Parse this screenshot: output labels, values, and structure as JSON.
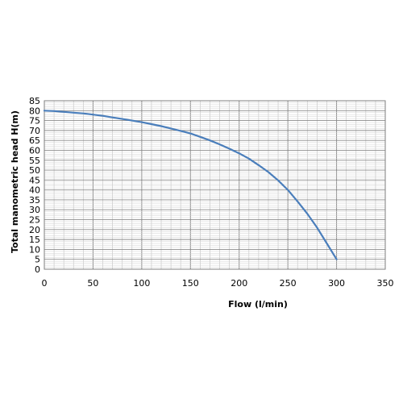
{
  "chart_data": {
    "type": "line",
    "xlabel": "Flow (l/min)",
    "ylabel": "Total manometric head H(m)",
    "xlim": [
      0,
      350
    ],
    "ylim": [
      0,
      85
    ],
    "x_ticks": [
      0,
      50,
      100,
      150,
      200,
      250,
      300,
      350
    ],
    "y_ticks": [
      0,
      5,
      10,
      15,
      20,
      25,
      30,
      35,
      40,
      45,
      50,
      55,
      60,
      65,
      70,
      75,
      80,
      85
    ],
    "grid": true,
    "line_color": "#4a7ebb",
    "series": [
      {
        "x": [
          0,
          10,
          20,
          30,
          40,
          50,
          60,
          70,
          80,
          90,
          100,
          110,
          120,
          130,
          140,
          150,
          160,
          170,
          180,
          190,
          200,
          210,
          220,
          230,
          240,
          250,
          260,
          270,
          280,
          290,
          300
        ],
        "values": [
          80,
          79.8,
          79.4,
          79,
          78.6,
          78,
          77.4,
          76.6,
          75.8,
          75,
          74.2,
          73.2,
          72.2,
          71,
          69.8,
          68.5,
          66.8,
          65,
          63,
          60.8,
          58.5,
          55.8,
          52.5,
          49,
          44.8,
          40,
          34.2,
          28,
          21,
          13,
          5
        ]
      }
    ]
  }
}
